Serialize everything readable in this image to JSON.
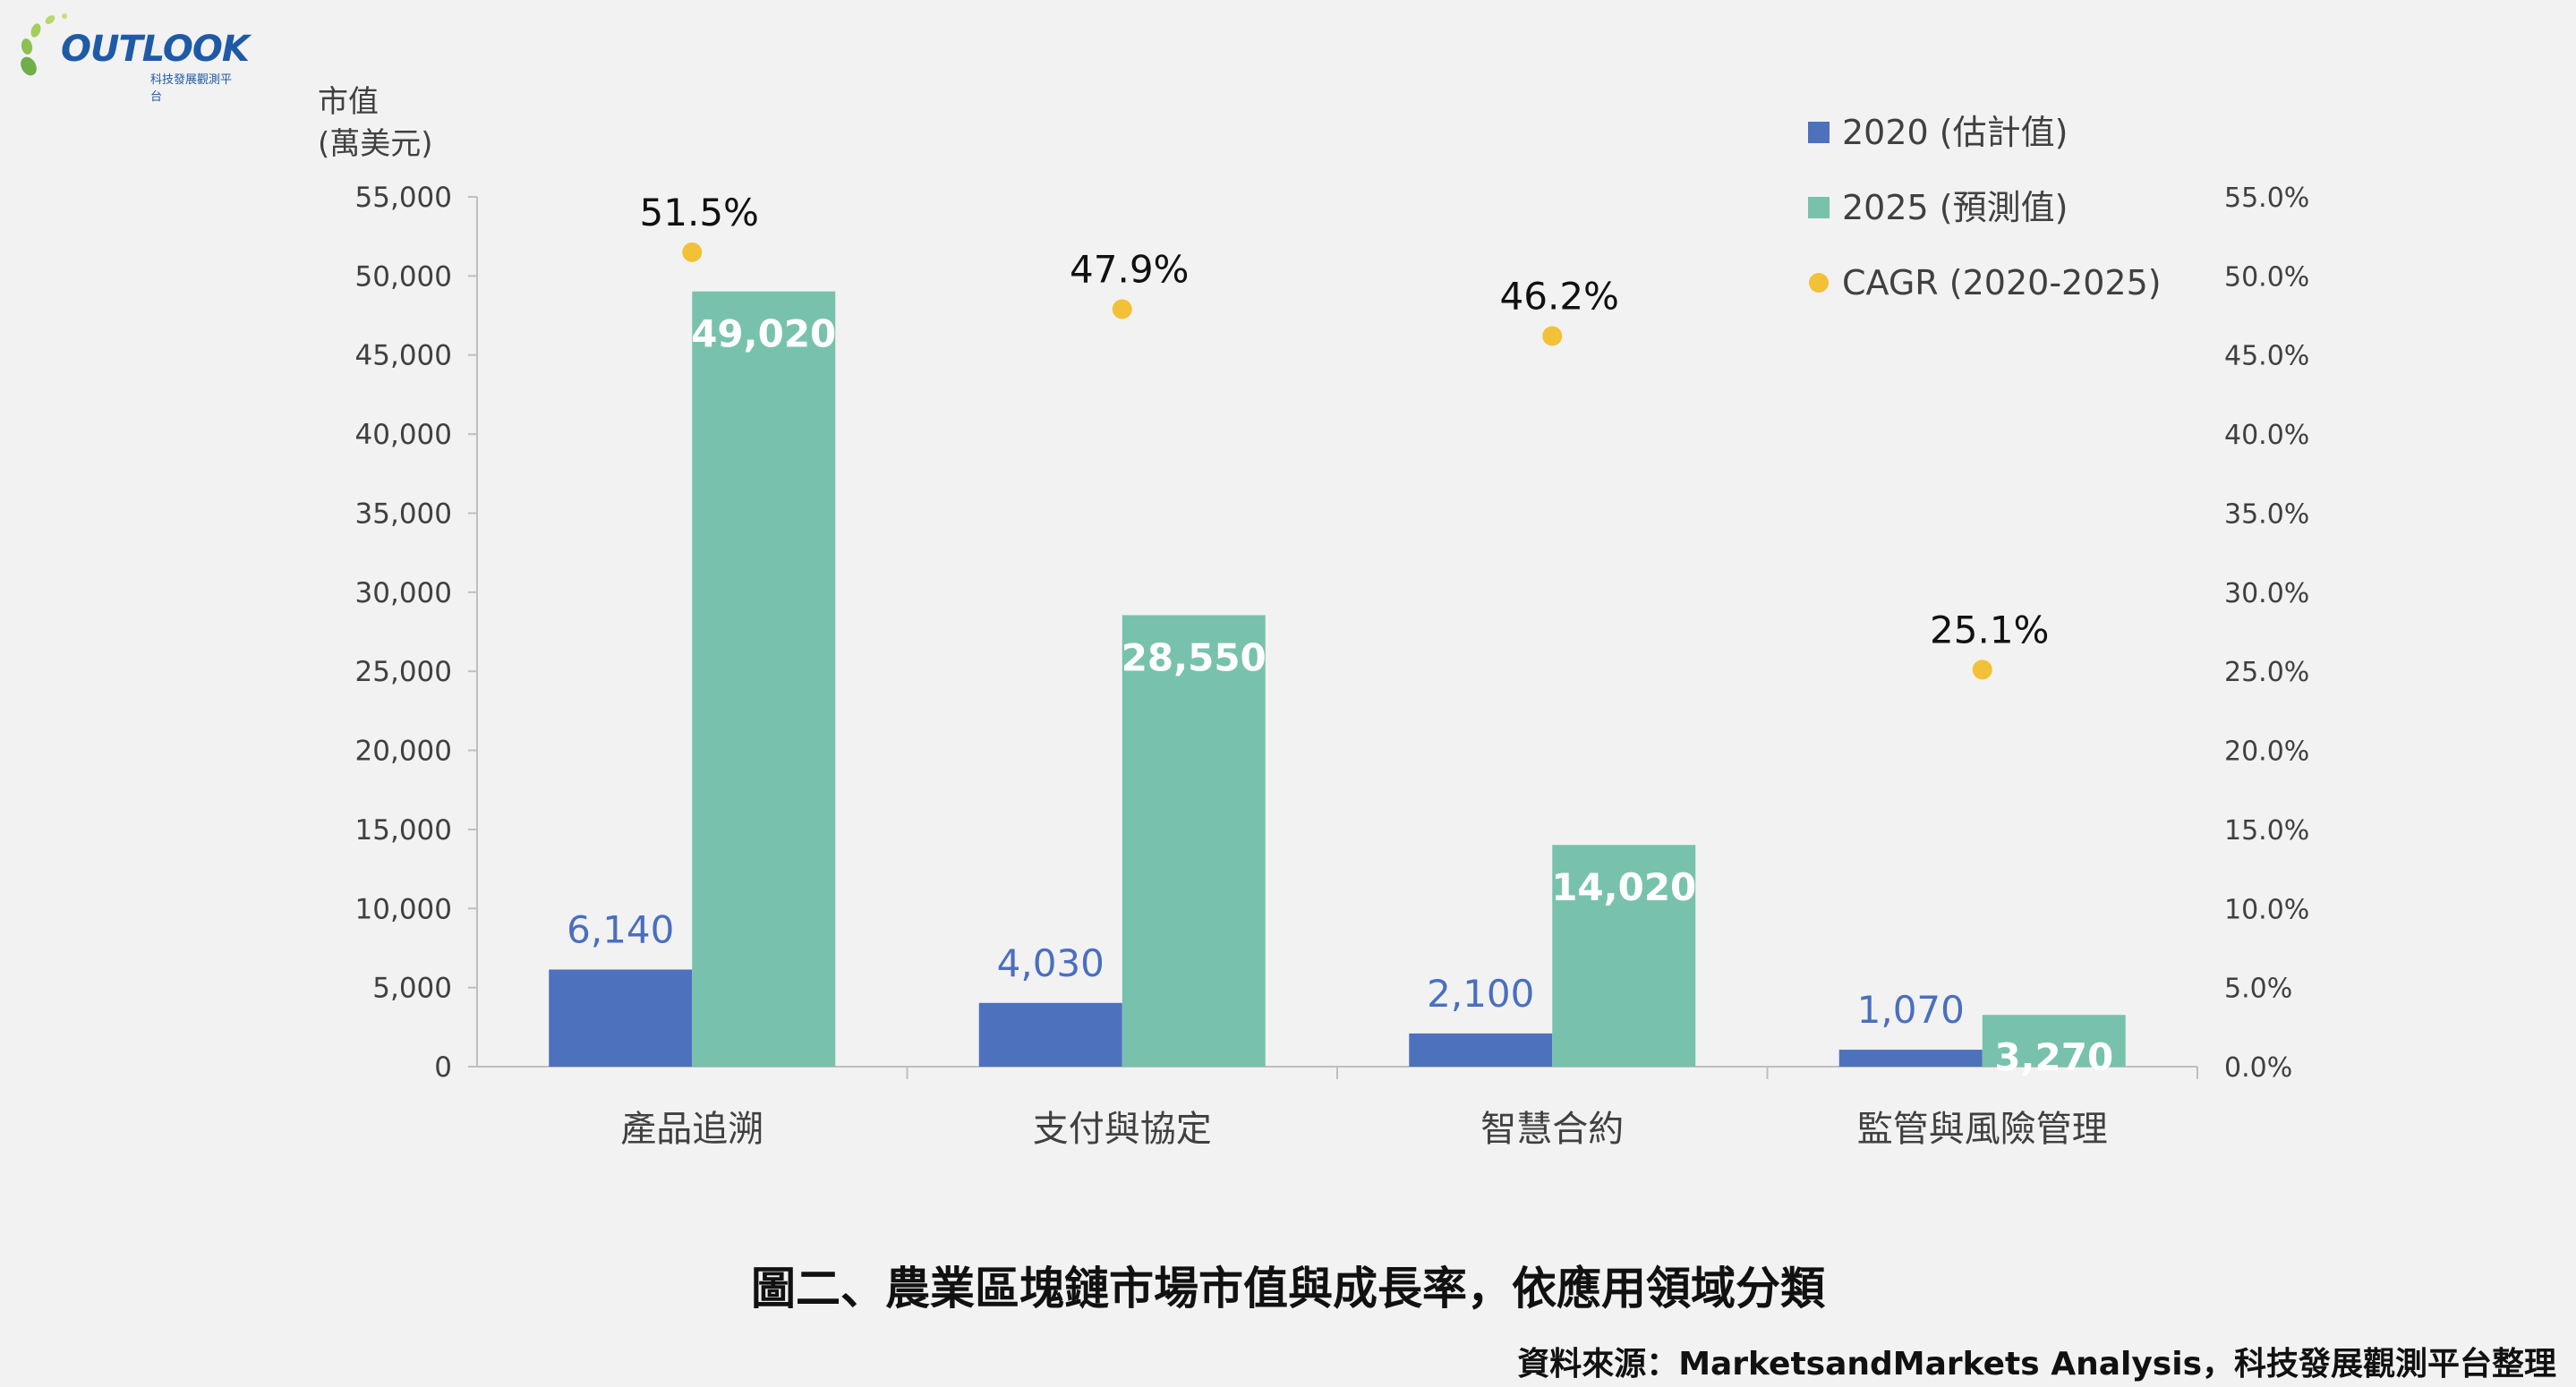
{
  "logo": {
    "name": "OUTLOOK",
    "subtitle": "科技發展觀測平台"
  },
  "caption": "圖二、農業區塊鏈市場市值與成長率，依應用領域分類",
  "source": "資料來源：MarketsandMarkets Analysis，科技發展觀測平台整理",
  "colors": {
    "series2020": "#4e71be",
    "series2025": "#78c2ad",
    "cagr": "#f3c137",
    "label2020": "#4a6fc0"
  },
  "chart_data": {
    "type": "bar",
    "categories": [
      "產品追溯",
      "支付與協定",
      "智慧合約",
      "監管與風險管理"
    ],
    "series": [
      {
        "name": "2020 (估計值)",
        "values": [
          6140,
          4030,
          2100,
          1070
        ],
        "labels": [
          "6,140",
          "4,030",
          "2,100",
          "1,070"
        ]
      },
      {
        "name": "2025 (預測值)",
        "values": [
          49020,
          28550,
          14020,
          3270
        ],
        "labels": [
          "49,020",
          "28,550",
          "14,020",
          "3,270"
        ]
      },
      {
        "name": "CAGR (2020-2025)",
        "type": "scatter",
        "axis": "right",
        "values": [
          51.5,
          47.9,
          46.2,
          25.1
        ],
        "labels": [
          "51.5%",
          "47.9%",
          "46.2%",
          "25.1%"
        ]
      }
    ],
    "ylabel": [
      "市值",
      "(萬美元)"
    ],
    "ylim": [
      0,
      55000
    ],
    "yticks": [
      "0",
      "5,000",
      "10,000",
      "15,000",
      "20,000",
      "25,000",
      "30,000",
      "35,000",
      "40,000",
      "45,000",
      "50,000",
      "55,000"
    ],
    "y2lim": [
      0,
      55
    ],
    "y2ticks": [
      "0.0%",
      "5.0%",
      "10.0%",
      "15.0%",
      "20.0%",
      "25.0%",
      "30.0%",
      "35.0%",
      "40.0%",
      "45.0%",
      "50.0%",
      "55.0%"
    ],
    "legend_position": "top-right",
    "grid": false
  }
}
